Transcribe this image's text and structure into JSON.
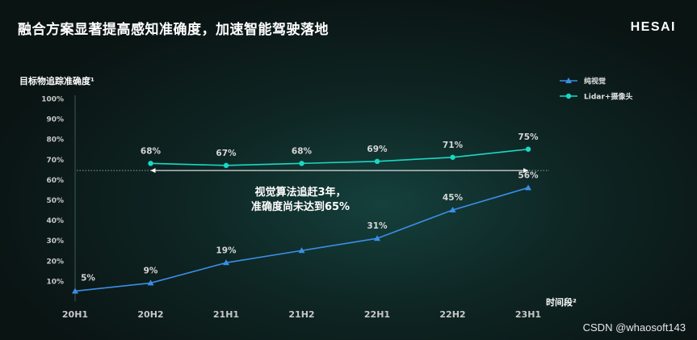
{
  "slide": {
    "title": "融合方案显著提高感知准确度，加速智能驾驶落地",
    "logo": "HESAI",
    "watermark": "CSDN @whaosoft143"
  },
  "colors": {
    "vision": "#3b8ee6",
    "lidar": "#1ad8c4",
    "text": "#d6d6d6",
    "axis": "#c8c8c8"
  },
  "chart_data": {
    "type": "line",
    "ylabel": "目标物追踪准确度¹",
    "xlabel": "时间段²",
    "categories": [
      "20H1",
      "20H2",
      "21H1",
      "21H2",
      "22H1",
      "22H2",
      "23H1"
    ],
    "y_ticks": [
      "10%",
      "20%",
      "30%",
      "40%",
      "50%",
      "60%",
      "70%",
      "80%",
      "90%",
      "100%"
    ],
    "ylim": [
      0,
      100
    ],
    "legend_position": "top-right",
    "series": [
      {
        "name": "纯视觉",
        "color_key": "vision",
        "marker": "triangle",
        "values": [
          5,
          9,
          19,
          25,
          31,
          45,
          56
        ],
        "labels": [
          "5%",
          "9%",
          "19%",
          "",
          "31%",
          "45%",
          "56%"
        ]
      },
      {
        "name": "Lidar+摄像头",
        "color_key": "lidar",
        "marker": "circle",
        "values": [
          null,
          68,
          67,
          68,
          69,
          71,
          75
        ],
        "labels": [
          "",
          "68%",
          "67%",
          "68%",
          "69%",
          "71%",
          "75%"
        ]
      }
    ],
    "annotation": {
      "line1": "视觉算法追赶3年，",
      "line2": "准确度尚未达到65%",
      "reference_value": 64.5,
      "from_category": 1,
      "to_category": 6
    }
  }
}
